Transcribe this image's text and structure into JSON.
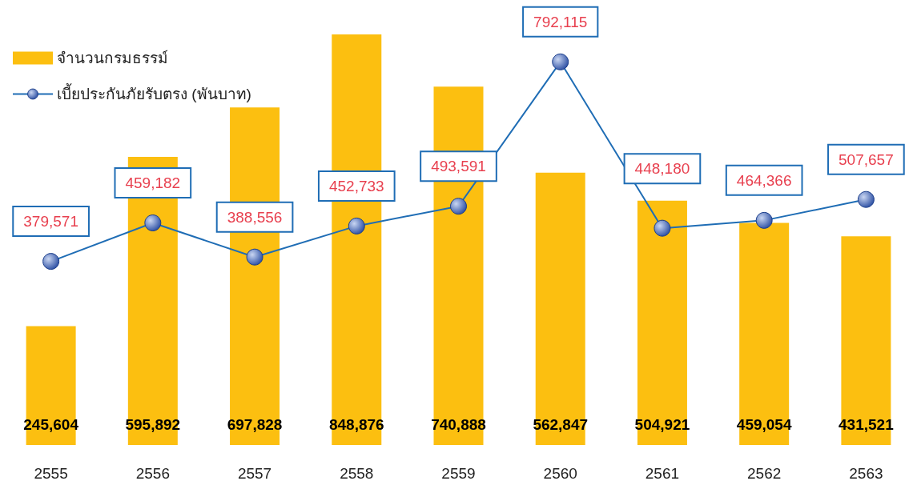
{
  "chart_data": {
    "type": "bar",
    "categories": [
      "2555",
      "2556",
      "2557",
      "2558",
      "2559",
      "2560",
      "2561",
      "2562",
      "2563"
    ],
    "series": [
      {
        "name": "จำนวนกรมธรรม์",
        "color": "#fcbf10",
        "values": [
          245604,
          595892,
          697828,
          848876,
          740888,
          562847,
          504921,
          459054,
          431521
        ],
        "value_labels": [
          "245,604",
          "595,892",
          "697,828",
          "848,876",
          "740,888",
          "562,847",
          "504,921",
          "459,054",
          "431,521"
        ]
      },
      {
        "name": "เบี้ยประกันภัยรับตรง (พันบาท)",
        "type": "line",
        "color": "#1f6db5",
        "values": [
          379571,
          459182,
          388556,
          452733,
          493591,
          792115,
          448180,
          464366,
          507657
        ],
        "value_labels": [
          "379,571",
          "459,182",
          "388,556",
          "452,733",
          "493,591",
          "792,115",
          "448,180",
          "464,366",
          "507,657"
        ]
      }
    ],
    "legend": "top left",
    "marker": "circle",
    "line_style": "solid",
    "grid": false
  }
}
